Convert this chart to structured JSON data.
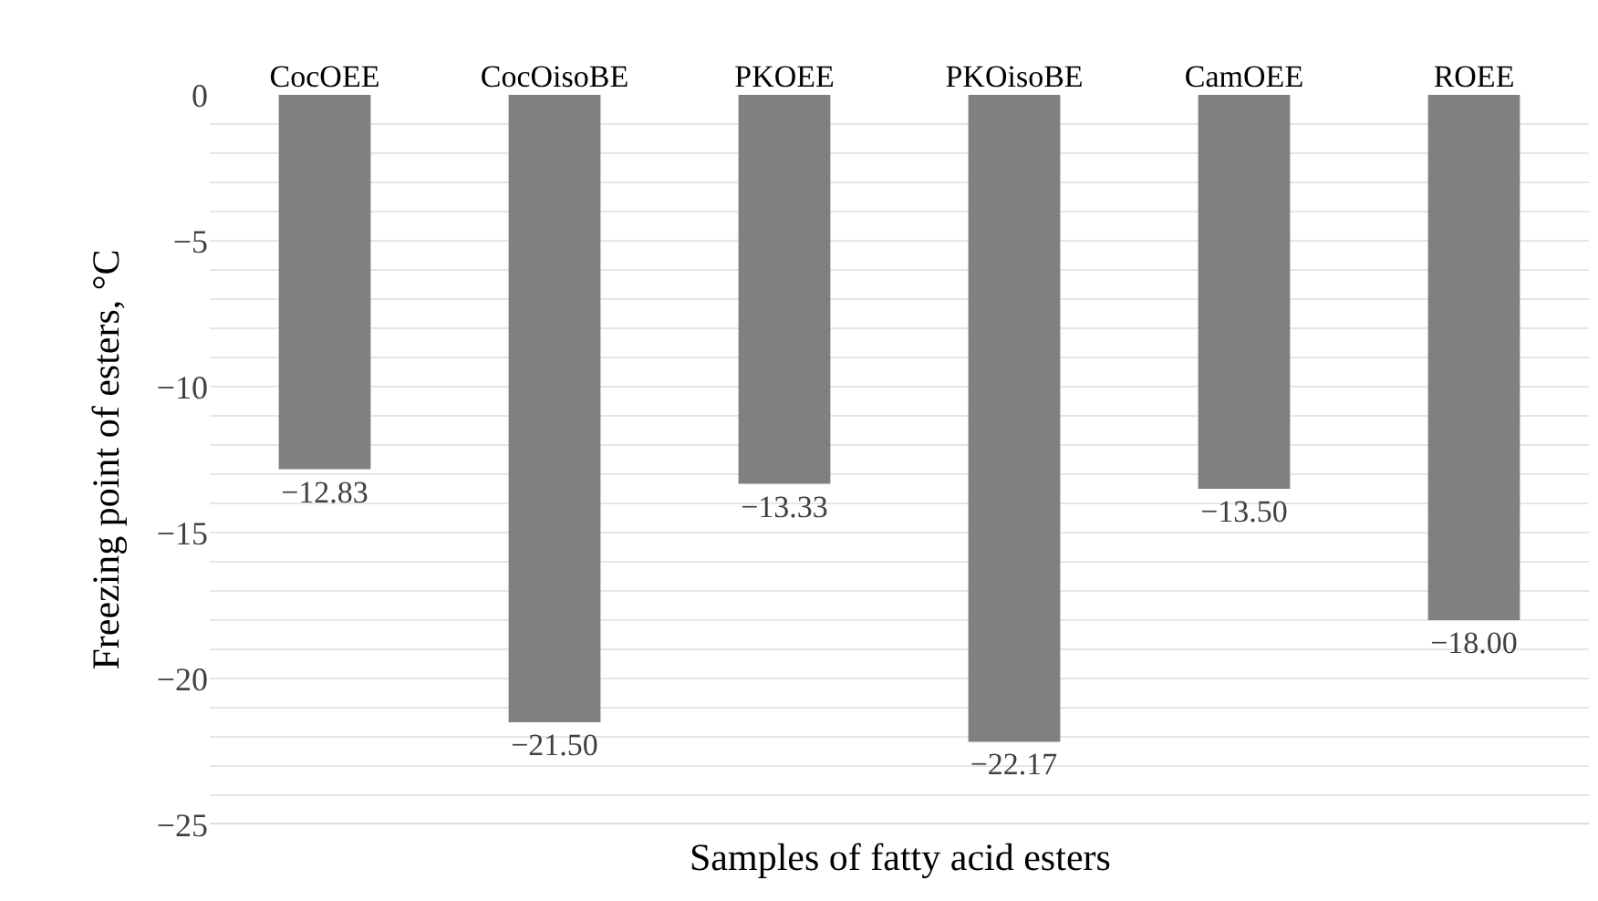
{
  "chart_data": {
    "type": "bar",
    "categories": [
      "CocOEE",
      "CocOisoBE",
      "PKOEE",
      "PKOisoBE",
      "CamOEE",
      "ROEE"
    ],
    "values": [
      -12.83,
      -21.5,
      -13.33,
      -22.17,
      -13.5,
      -18.0
    ],
    "value_labels": [
      "−12.83",
      "−21.50",
      "−13.33",
      "−22.17",
      "−13.50",
      "−18.00"
    ],
    "color": "#808080",
    "xlabel": "Samples of fatty acid esters",
    "ylabel": "Freezing point of esters, °C",
    "ylim": [
      -25,
      0
    ],
    "yticks": [
      0,
      {
        "value": -1,
        "label": null
      },
      {
        "value": -2,
        "label": null
      },
      {
        "value": -3,
        "label": null
      },
      {
        "value": -4,
        "label": null
      },
      {
        "value": -5,
        "label": "−5"
      },
      {
        "value": -6,
        "label": null
      },
      {
        "value": -7,
        "label": null
      },
      {
        "value": -8,
        "label": null
      },
      {
        "value": -9,
        "label": null
      },
      {
        "value": -10,
        "label": "−10"
      },
      {
        "value": -11,
        "label": null
      },
      {
        "value": -12,
        "label": null
      },
      {
        "value": -13,
        "label": null
      },
      {
        "value": -14,
        "label": null
      },
      {
        "value": -15,
        "label": "−15"
      },
      {
        "value": -16,
        "label": null
      },
      {
        "value": -17,
        "label": null
      },
      {
        "value": -18,
        "label": null
      },
      {
        "value": -19,
        "label": null
      },
      {
        "value": -20,
        "label": "−20"
      },
      {
        "value": -21,
        "label": null
      },
      {
        "value": -22,
        "label": null
      },
      {
        "value": -23,
        "label": null
      },
      {
        "value": -24,
        "label": null
      },
      {
        "value": -25,
        "label": "−25"
      }
    ],
    "grid": "y"
  }
}
